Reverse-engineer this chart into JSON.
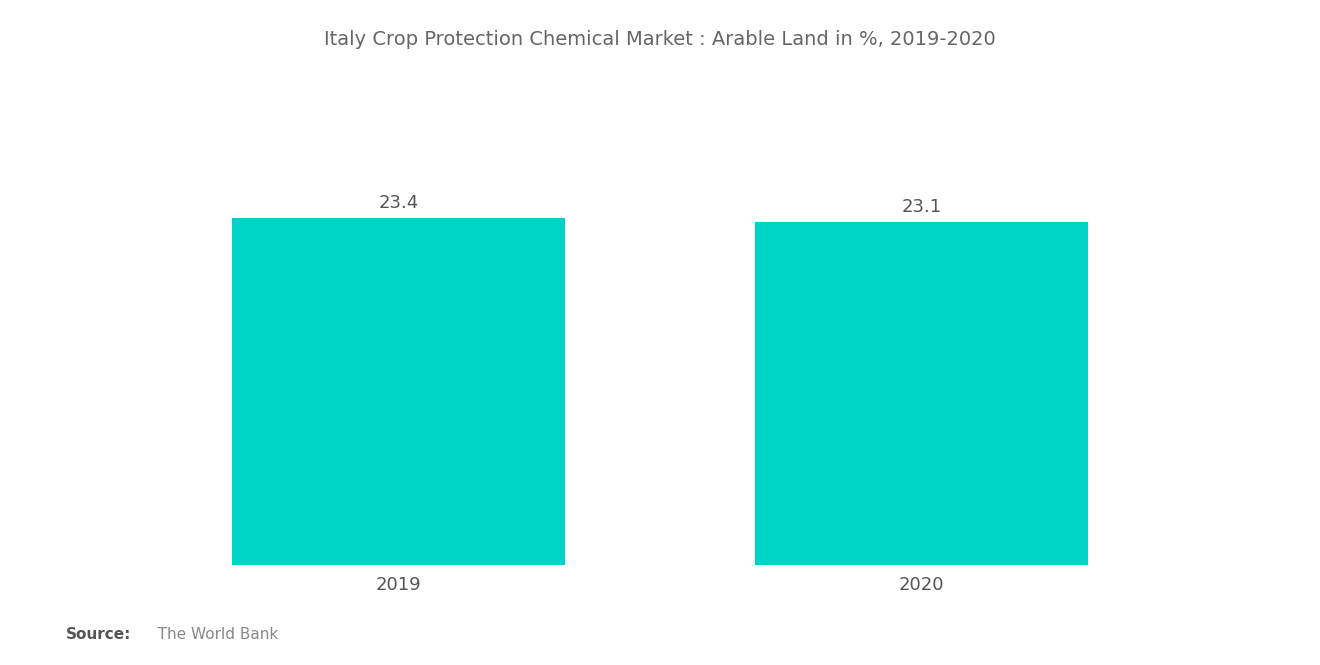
{
  "title": "Italy Crop Protection Chemical Market : Arable Land in %, 2019-2020",
  "categories": [
    "2019",
    "2020"
  ],
  "values": [
    23.4,
    23.1
  ],
  "bar_color": "#00D4C8",
  "label_color": "#555555",
  "title_color": "#666666",
  "source_bold": "Source:",
  "source_text": "   The World Bank",
  "source_color": "#888888",
  "background_color": "#ffffff",
  "title_fontsize": 14,
  "label_fontsize": 13,
  "value_fontsize": 13,
  "source_fontsize": 11,
  "ylim": [
    0,
    30
  ],
  "bar_width": 0.28,
  "x_positions": [
    0.28,
    0.72
  ]
}
